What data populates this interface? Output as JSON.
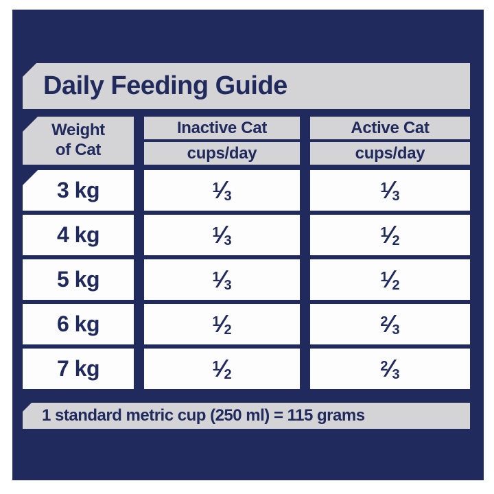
{
  "colors": {
    "navy": "#202a5c",
    "bar_gray": "#d4d4d7",
    "cell_white": "#fdfdfe"
  },
  "title": "Daily Feeding Guide",
  "fraction_slash": "⁄",
  "table": {
    "weight_header": "Weight\nof Cat",
    "columns": [
      {
        "label": "Inactive Cat",
        "units": "cups/day"
      },
      {
        "label": "Active Cat",
        "units": "cups/day"
      }
    ],
    "rows": [
      {
        "weight": "3 kg",
        "inactive": {
          "n": "1",
          "d": "3"
        },
        "active": {
          "n": "1",
          "d": "3"
        }
      },
      {
        "weight": "4 kg",
        "inactive": {
          "n": "1",
          "d": "3"
        },
        "active": {
          "n": "1",
          "d": "2"
        }
      },
      {
        "weight": "5 kg",
        "inactive": {
          "n": "1",
          "d": "3"
        },
        "active": {
          "n": "1",
          "d": "2"
        }
      },
      {
        "weight": "6 kg",
        "inactive": {
          "n": "1",
          "d": "2"
        },
        "active": {
          "n": "2",
          "d": "3"
        }
      },
      {
        "weight": "7 kg",
        "inactive": {
          "n": "1",
          "d": "2"
        },
        "active": {
          "n": "2",
          "d": "3"
        }
      }
    ]
  },
  "footnote": "1 standard metric cup (250 ml) = 115 grams",
  "chart_data": {
    "type": "table",
    "title": "Daily Feeding Guide",
    "columns": [
      "Weight of Cat",
      "Inactive Cat (cups/day)",
      "Active Cat (cups/day)"
    ],
    "rows": [
      [
        "3 kg",
        "1/3",
        "1/3"
      ],
      [
        "4 kg",
        "1/3",
        "1/2"
      ],
      [
        "5 kg",
        "1/3",
        "1/2"
      ],
      [
        "6 kg",
        "1/2",
        "2/3"
      ],
      [
        "7 kg",
        "1/2",
        "2/3"
      ]
    ],
    "footnote": "1 standard metric cup (250 ml) = 115 grams"
  }
}
